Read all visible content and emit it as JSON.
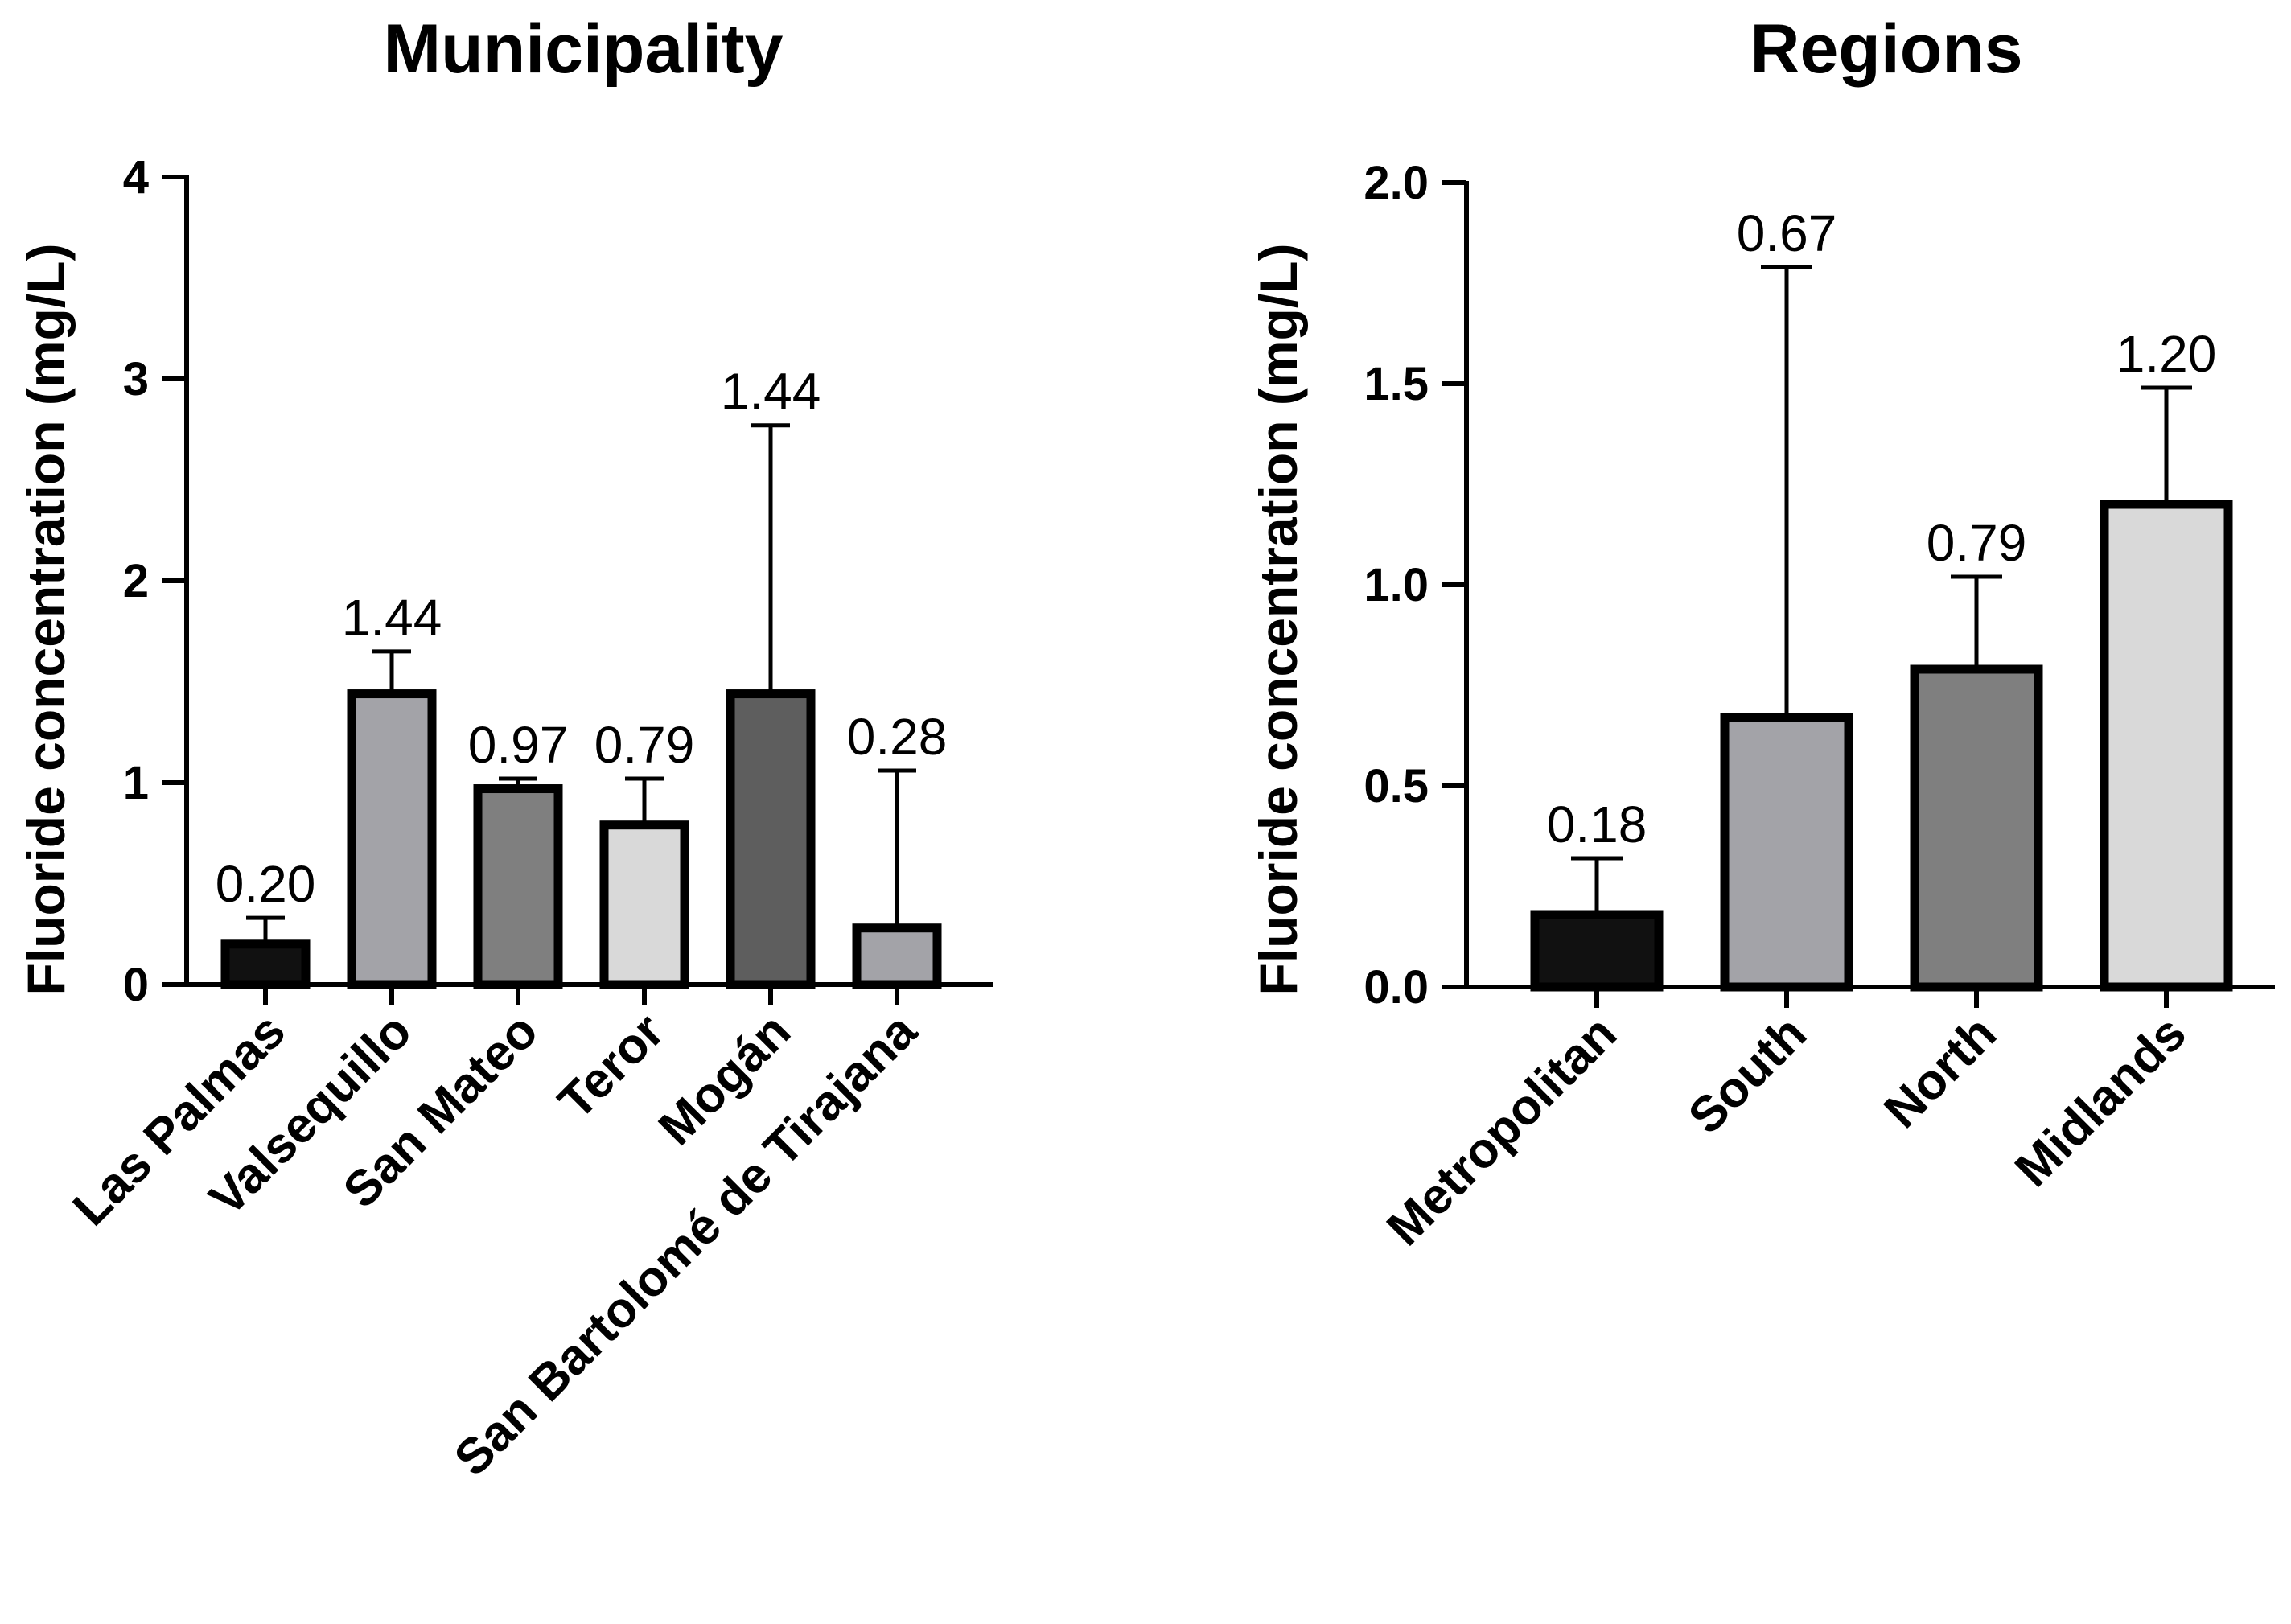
{
  "chart_data": [
    {
      "type": "bar",
      "title": "Municipality",
      "xlabel": "",
      "ylabel": "Fluoride concentration (mg/L)",
      "ylim": [
        0,
        4
      ],
      "yticks": [
        "0",
        "1",
        "2",
        "3",
        "4"
      ],
      "categories": [
        "Las Palmas",
        "Valsequillo",
        "San Mateo",
        "Teror",
        "Mogán",
        "San Bartolomé de Tirajana"
      ],
      "values": [
        0.2,
        1.44,
        0.97,
        0.79,
        1.44,
        0.28
      ],
      "value_labels": [
        "0.20",
        "1.44",
        "0.97",
        "0.79",
        "1.44",
        "0.28"
      ],
      "error_upper": [
        0.33,
        1.65,
        1.02,
        1.02,
        2.77,
        1.06
      ],
      "bar_colors": [
        "#111111",
        "#a3a3a8",
        "#7f7f7f",
        "#d9d9d9",
        "#5e5e5e",
        "#a3a3a8"
      ]
    },
    {
      "type": "bar",
      "title": "Regions",
      "xlabel": "",
      "ylabel": "Fluoride concentration (mg/L)",
      "ylim": [
        0,
        2
      ],
      "yticks": [
        "0.0",
        "0.5",
        "1.0",
        "1.5",
        "2.0"
      ],
      "categories": [
        "Metropolitan",
        "South",
        "North",
        "Midlands"
      ],
      "values": [
        0.18,
        0.67,
        0.79,
        1.2
      ],
      "value_labels": [
        "0.18",
        "0.67",
        "0.79",
        "1.20"
      ],
      "error_upper": [
        0.32,
        1.79,
        1.02,
        1.49
      ],
      "bar_colors": [
        "#111111",
        "#a3a3a8",
        "#7f7f7f",
        "#d9d9d9"
      ]
    }
  ]
}
